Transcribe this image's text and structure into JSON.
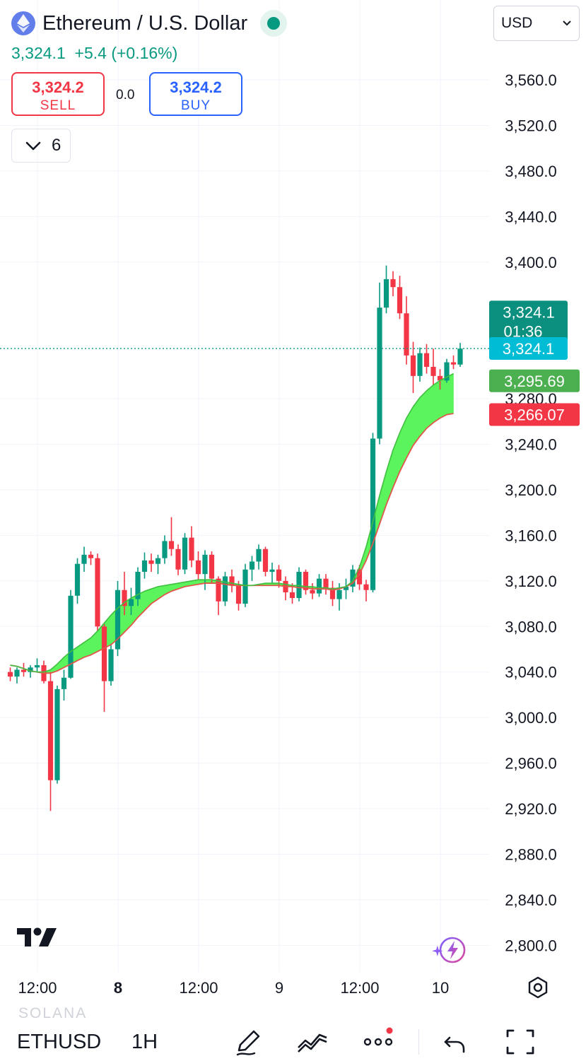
{
  "header": {
    "title": "Ethereum / U.S. Dollar",
    "quote": "3,324.1  +5.4 (+0.16%)",
    "sell": {
      "price": "3,324.2",
      "label": "SELL"
    },
    "buy": {
      "price": "3,324.2",
      "label": "BUY"
    },
    "spread": "0.0",
    "indicators_count": "6",
    "currency": "USD"
  },
  "bottom_bar": {
    "ghost_symbol": "SOLANA",
    "symbol": "ETHUSD",
    "interval": "1H"
  },
  "colors": {
    "up": "#089981",
    "down": "#f23645",
    "ribbon": "#5cf45c",
    "countdown_bg": "#0b8f7e",
    "last_price_bg": "#00bcd4",
    "ma_fast_bg": "#4caf50",
    "ma_slow_bg": "#f23645"
  },
  "chart_data": {
    "type": "candlestick",
    "interval": "1H",
    "y_ticks": [
      "3,560.0",
      "3,520.0",
      "3,480.0",
      "3,440.0",
      "3,400.0",
      "3,280.0",
      "3,240.0",
      "3,200.0",
      "3,160.0",
      "3,120.0",
      "3,080.0",
      "3,040.0",
      "3,000.0",
      "2,960.0",
      "2,920.0",
      "2,880.0",
      "2,840.0",
      "2,800.0"
    ],
    "y_tick_values": [
      3560,
      3520,
      3480,
      3440,
      3400,
      3280,
      3240,
      3200,
      3160,
      3120,
      3080,
      3040,
      3000,
      2960,
      2920,
      2880,
      2840,
      2800
    ],
    "x_ticks": [
      {
        "label": "12:00",
        "bold": false,
        "idx": 4
      },
      {
        "label": "8",
        "bold": true,
        "idx": 16
      },
      {
        "label": "12:00",
        "bold": false,
        "idx": 28
      },
      {
        "label": "9",
        "bold": false,
        "idx": 40
      },
      {
        "label": "12:00",
        "bold": false,
        "idx": 52
      },
      {
        "label": "10",
        "bold": false,
        "idx": 64
      }
    ],
    "price_labels": [
      {
        "name": "countdown-price-label",
        "price": "3,324.1",
        "sub": "01:36",
        "value": 3340,
        "bg": "#0b8f7e"
      },
      {
        "name": "last-price-label",
        "price": "3,324.1",
        "value": 3324.1,
        "bg": "#00bcd4"
      },
      {
        "name": "ma-fast-label",
        "price": "3,295.69",
        "value": 3295.69,
        "bg": "#4caf50"
      },
      {
        "name": "ma-slow-label",
        "price": "3,266.07",
        "value": 3266.07,
        "bg": "#f23645"
      }
    ],
    "last_price": 3324.1,
    "candles": [
      [
        3040,
        3044,
        3032,
        3036
      ],
      [
        3036,
        3044,
        3030,
        3042
      ],
      [
        3042,
        3048,
        3036,
        3040
      ],
      [
        3040,
        3046,
        3035,
        3044
      ],
      [
        3044,
        3052,
        3040,
        3046
      ],
      [
        3046,
        3050,
        3030,
        3032
      ],
      [
        3032,
        3040,
        2918,
        2945
      ],
      [
        2945,
        3028,
        2942,
        3025
      ],
      [
        3025,
        3042,
        3015,
        3035
      ],
      [
        3035,
        3112,
        3034,
        3107
      ],
      [
        3107,
        3140,
        3100,
        3135
      ],
      [
        3135,
        3150,
        3128,
        3143
      ],
      [
        3143,
        3146,
        3134,
        3140
      ],
      [
        3140,
        3144,
        3076,
        3080
      ],
      [
        3080,
        3082,
        3005,
        3032
      ],
      [
        3032,
        3065,
        3028,
        3060
      ],
      [
        3060,
        3120,
        3054,
        3112
      ],
      [
        3112,
        3128,
        3090,
        3098
      ],
      [
        3098,
        3114,
        3090,
        3104
      ],
      [
        3104,
        3132,
        3098,
        3128
      ],
      [
        3128,
        3145,
        3122,
        3138
      ],
      [
        3138,
        3144,
        3128,
        3135
      ],
      [
        3135,
        3143,
        3126,
        3140
      ],
      [
        3140,
        3160,
        3135,
        3155
      ],
      [
        3155,
        3176,
        3142,
        3148
      ],
      [
        3148,
        3152,
        3125,
        3130
      ],
      [
        3130,
        3162,
        3126,
        3158
      ],
      [
        3158,
        3168,
        3132,
        3138
      ],
      [
        3138,
        3146,
        3121,
        3126
      ],
      [
        3126,
        3147,
        3112,
        3143
      ],
      [
        3143,
        3146,
        3118,
        3122
      ],
      [
        3122,
        3124,
        3090,
        3102
      ],
      [
        3102,
        3128,
        3098,
        3124
      ],
      [
        3124,
        3130,
        3110,
        3116
      ],
      [
        3116,
        3120,
        3094,
        3100
      ],
      [
        3100,
        3135,
        3097,
        3130
      ],
      [
        3130,
        3142,
        3120,
        3137
      ],
      [
        3137,
        3152,
        3130,
        3148
      ],
      [
        3148,
        3150,
        3124,
        3128
      ],
      [
        3128,
        3136,
        3118,
        3130
      ],
      [
        3130,
        3134,
        3114,
        3120
      ],
      [
        3120,
        3124,
        3103,
        3110
      ],
      [
        3110,
        3118,
        3100,
        3105
      ],
      [
        3105,
        3132,
        3102,
        3128
      ],
      [
        3128,
        3130,
        3108,
        3112
      ],
      [
        3112,
        3118,
        3104,
        3109
      ],
      [
        3109,
        3126,
        3106,
        3122
      ],
      [
        3122,
        3126,
        3108,
        3114
      ],
      [
        3114,
        3120,
        3098,
        3104
      ],
      [
        3104,
        3118,
        3094,
        3112
      ],
      [
        3112,
        3122,
        3104,
        3115
      ],
      [
        3115,
        3134,
        3110,
        3130
      ],
      [
        3130,
        3134,
        3112,
        3117
      ],
      [
        3117,
        3121,
        3102,
        3112
      ],
      [
        3112,
        3250,
        3110,
        3245
      ],
      [
        3245,
        3382,
        3240,
        3360
      ],
      [
        3360,
        3397,
        3355,
        3385
      ],
      [
        3385,
        3392,
        3370,
        3378
      ],
      [
        3378,
        3388,
        3350,
        3355
      ],
      [
        3355,
        3370,
        3310,
        3318
      ],
      [
        3318,
        3330,
        3285,
        3300
      ],
      [
        3300,
        3325,
        3295,
        3320
      ],
      [
        3320,
        3328,
        3302,
        3308
      ],
      [
        3308,
        3324,
        3292,
        3300
      ],
      [
        3300,
        3306,
        3288,
        3296
      ],
      [
        3296,
        3315,
        3294,
        3312
      ],
      [
        3312,
        3318,
        3306,
        3310
      ],
      [
        3310,
        3329,
        3308,
        3324
      ]
    ],
    "ma_fast": [
      3046,
      3045,
      3043,
      3041,
      3040,
      3040,
      3042,
      3047,
      3053,
      3058,
      3062,
      3066,
      3070,
      3076,
      3083,
      3090,
      3096,
      3101,
      3105,
      3108,
      3111,
      3113,
      3115,
      3116,
      3117,
      3118,
      3119,
      3120,
      3121,
      3121,
      3121,
      3120,
      3119,
      3118,
      3117,
      3116,
      3116,
      3117,
      3118,
      3118,
      3118,
      3117,
      3116,
      3116,
      3115,
      3115,
      3114,
      3114,
      3113,
      3114,
      3115,
      3120,
      3132,
      3150,
      3172,
      3195,
      3216,
      3235,
      3250,
      3263,
      3273,
      3281,
      3287,
      3292,
      3296,
      3299,
      3302
    ],
    "ma_slow": [
      3046,
      3045,
      3043,
      3041,
      3040,
      3039,
      3039,
      3041,
      3044,
      3047,
      3050,
      3053,
      3055,
      3058,
      3061,
      3064,
      3069,
      3075,
      3081,
      3088,
      3094,
      3100,
      3104,
      3108,
      3111,
      3113,
      3115,
      3116,
      3117,
      3118,
      3118,
      3118,
      3117,
      3116,
      3116,
      3116,
      3116,
      3116,
      3116,
      3116,
      3116,
      3115,
      3115,
      3114,
      3114,
      3113,
      3113,
      3113,
      3112,
      3113,
      3115,
      3118,
      3126,
      3138,
      3153,
      3170,
      3187,
      3202,
      3216,
      3228,
      3239,
      3247,
      3254,
      3259,
      3263,
      3266,
      3267
    ]
  }
}
